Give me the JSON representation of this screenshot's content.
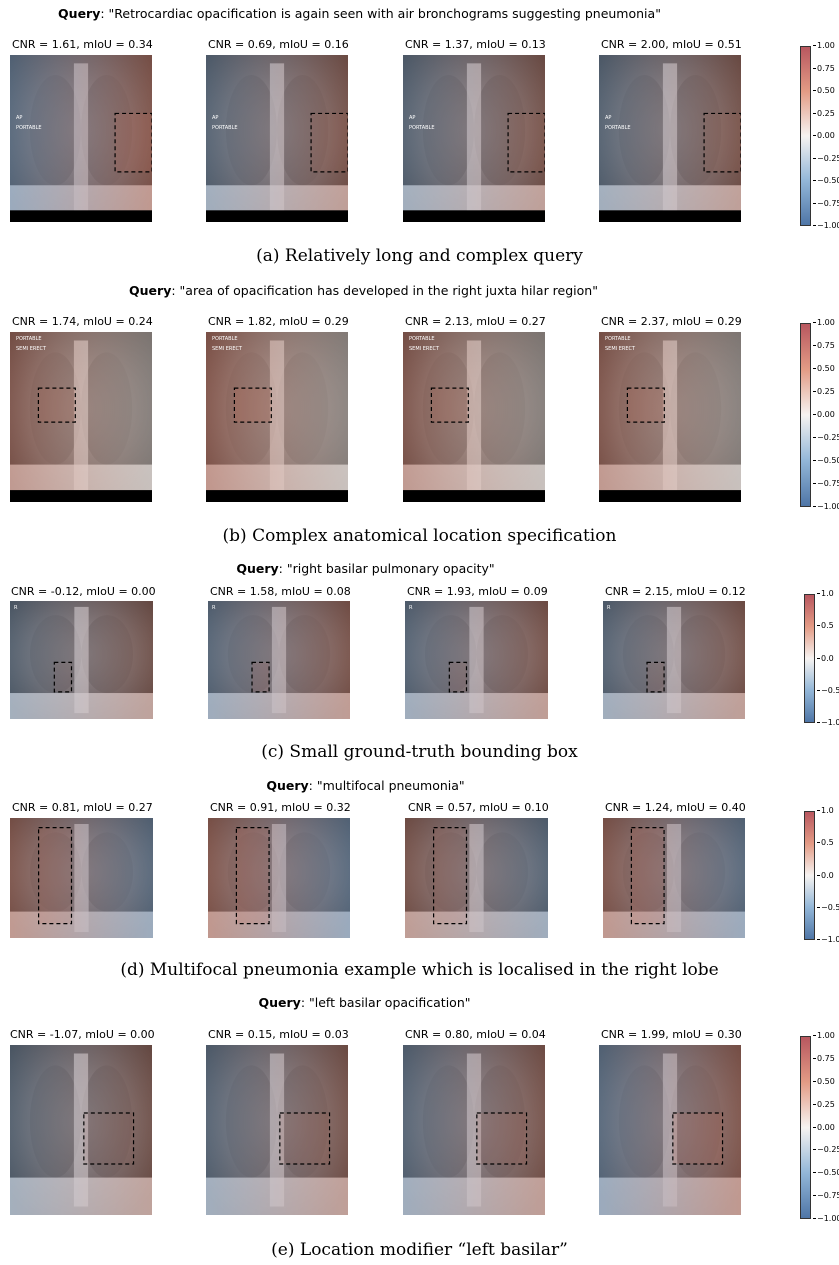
{
  "query_prefix": "Query",
  "cbar_ticks9": [
    "1.00",
    "0.75",
    "0.50",
    "0.25",
    "0.00",
    "−0.25",
    "−0.50",
    "−0.75",
    "−1.00"
  ],
  "cbar_ticks5": [
    "1.0",
    "0.5",
    "0.0",
    "−0.5",
    "−1.0"
  ],
  "rows": [
    {
      "query": ": \"Retrocardiac opacification is again seen with air bronchograms suggesting pneumonia\"",
      "caption": "(a) Relatively long and complex query",
      "panels": [
        "CNR = 1.61, mIoU = 0.34",
        "CNR = 0.69, mIoU = 0.16",
        "CNR = 1.37, mIoU = 0.13",
        "CNR = 2.00, mIoU = 0.51"
      ],
      "image_labels": [
        "AP",
        "PORTABLE"
      ]
    },
    {
      "query": ": \"area of opacification has developed in the right juxta hilar region\"",
      "caption": "(b) Complex anatomical location specification",
      "panels": [
        "CNR = 1.74, mIoU = 0.24",
        "CNR = 1.82, mIoU = 0.29",
        "CNR = 2.13, mIoU = 0.27",
        "CNR = 2.37, mIoU = 0.29"
      ],
      "image_labels": [
        "PORTABLE",
        "SEMI ERECT"
      ]
    },
    {
      "query": ": \"right basilar pulmonary opacity\"",
      "caption": "(c) Small ground-truth bounding box",
      "panels": [
        "CNR = -0.12, mIoU = 0.00",
        "CNR = 1.58, mIoU = 0.08",
        "CNR = 1.93, mIoU = 0.09",
        "CNR = 2.15, mIoU = 0.12"
      ],
      "image_labels": [
        "R"
      ]
    },
    {
      "query": ": \"multifocal pneumonia\"",
      "caption": "(d) Multifocal pneumonia example which is localised in the right lobe",
      "panels": [
        "CNR = 0.81, mIoU = 0.27",
        "CNR = 0.91, mIoU = 0.32",
        "CNR = 0.57, mIoU = 0.10",
        "CNR = 1.24, mIoU = 0.40"
      ],
      "image_labels": []
    },
    {
      "query": ": \"left basilar opacification\"",
      "caption": "(e) Location modifier “left basilar”",
      "panels": [
        "CNR = -1.07, mIoU = 0.00",
        "CNR = 0.15, mIoU = 0.03",
        "CNR = 0.80, mIoU = 0.04",
        "CNR = 1.99, mIoU = 0.30"
      ],
      "image_labels": []
    }
  ]
}
